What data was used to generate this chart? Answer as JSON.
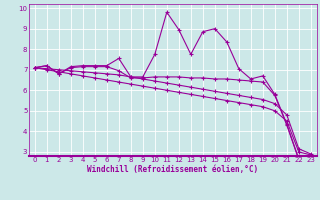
{
  "xlabel": "Windchill (Refroidissement éolien,°C)",
  "background_color": "#cce8e8",
  "line_color": "#990099",
  "xlim": [
    -0.5,
    23.5
  ],
  "ylim": [
    2.8,
    10.2
  ],
  "yticks": [
    3,
    4,
    5,
    6,
    7,
    8,
    9,
    10
  ],
  "xticks": [
    0,
    1,
    2,
    3,
    4,
    5,
    6,
    7,
    8,
    9,
    10,
    11,
    12,
    13,
    14,
    15,
    16,
    17,
    18,
    19,
    20,
    21,
    22,
    23
  ],
  "series": [
    [
      7.1,
      7.2,
      6.8,
      7.15,
      7.2,
      7.2,
      7.2,
      7.55,
      6.65,
      6.65,
      7.75,
      9.8,
      8.95,
      7.75,
      8.85,
      9.0,
      8.35,
      7.05,
      6.55,
      6.7,
      5.8,
      4.35,
      2.65,
      2.7
    ],
    [
      7.1,
      7.2,
      6.8,
      7.1,
      7.15,
      7.15,
      7.15,
      6.95,
      6.6,
      6.6,
      6.65,
      6.65,
      6.65,
      6.6,
      6.6,
      6.55,
      6.55,
      6.5,
      6.45,
      6.4,
      5.75,
      4.3,
      2.62,
      2.68
    ],
    [
      7.1,
      7.05,
      7.0,
      6.95,
      6.9,
      6.85,
      6.8,
      6.75,
      6.65,
      6.55,
      6.45,
      6.35,
      6.25,
      6.15,
      6.05,
      5.95,
      5.85,
      5.75,
      5.65,
      5.55,
      5.35,
      4.8,
      3.15,
      2.9
    ],
    [
      7.1,
      7.0,
      6.9,
      6.8,
      6.7,
      6.6,
      6.5,
      6.4,
      6.3,
      6.2,
      6.1,
      6.0,
      5.9,
      5.8,
      5.7,
      5.6,
      5.5,
      5.4,
      5.3,
      5.2,
      5.0,
      4.5,
      3.0,
      2.85
    ]
  ],
  "tick_fontsize": 5.0,
  "xlabel_fontsize": 5.5
}
